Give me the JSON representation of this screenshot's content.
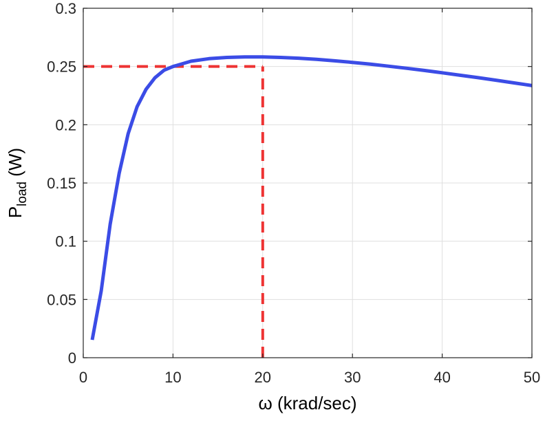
{
  "chart_data": {
    "type": "line",
    "title": "",
    "xlabel": "ω (krad/sec)",
    "ylabel_main": "P",
    "ylabel_sub": "load",
    "ylabel_unit": " (W)",
    "xlim": [
      0,
      50
    ],
    "ylim": [
      0,
      0.3
    ],
    "x_ticks": [
      0,
      10,
      20,
      30,
      40,
      50
    ],
    "x_tick_labels": [
      "0",
      "10",
      "20",
      "30",
      "40",
      "50"
    ],
    "y_ticks": [
      0,
      0.05,
      0.1,
      0.15,
      0.2,
      0.25,
      0.3
    ],
    "y_tick_labels": [
      "0",
      "0.05",
      "0.1",
      "0.15",
      "0.2",
      "0.25",
      "0.3"
    ],
    "grid": true,
    "series": [
      {
        "color": "#3b4ce6",
        "style": "solid",
        "x": [
          1,
          2,
          3,
          4,
          5,
          6,
          7,
          8,
          9,
          10,
          12,
          14,
          16,
          18,
          20,
          22,
          24,
          26,
          28,
          30,
          32,
          34,
          36,
          38,
          40,
          42,
          44,
          46,
          48,
          50
        ],
        "y": [
          0.0153,
          0.0574,
          0.1146,
          0.1584,
          0.1923,
          0.2155,
          0.2305,
          0.2404,
          0.2468,
          0.25,
          0.2545,
          0.2567,
          0.2578,
          0.2582,
          0.2582,
          0.2578,
          0.2571,
          0.2561,
          0.2549,
          0.2535,
          0.252,
          0.2503,
          0.2485,
          0.2466,
          0.2446,
          0.2425,
          0.2404,
          0.2382,
          0.2359,
          0.2336
        ]
      }
    ],
    "annotations": [
      {
        "type": "hline",
        "y": 0.25,
        "x_from": 0,
        "x_to": 20,
        "color": "#ee3333",
        "style": "dashed"
      },
      {
        "type": "vline",
        "x": 20,
        "y_from": 0,
        "y_to": 0.25,
        "color": "#ee3333",
        "style": "dashed"
      }
    ]
  }
}
